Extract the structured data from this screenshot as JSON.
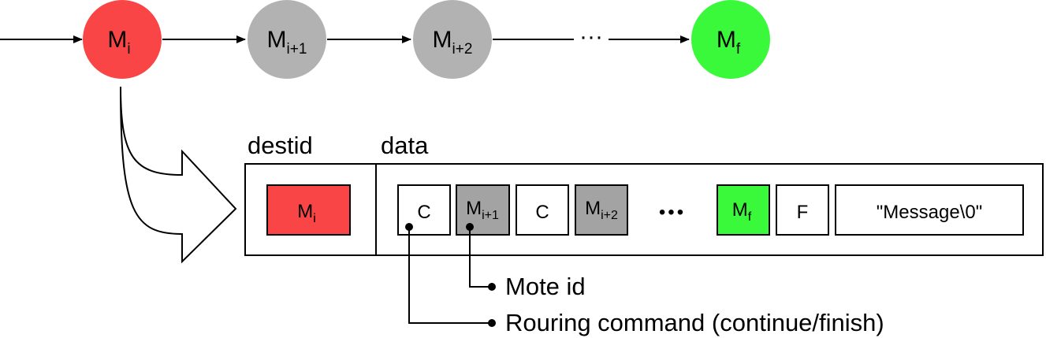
{
  "nodes": [
    {
      "main": "M",
      "sub": "i",
      "color": "#f94545"
    },
    {
      "main": "M",
      "sub": "i+1",
      "color": "#b2b2b2"
    },
    {
      "main": "M",
      "sub": "i+2",
      "color": "#b2b2b2"
    },
    {
      "main": "M",
      "sub": "f",
      "color": "#3af83a"
    }
  ],
  "ellipsis": "···",
  "fields": {
    "destid_label": "destid",
    "data_label": "data"
  },
  "packet": {
    "dest": {
      "main": "M",
      "sub": "i",
      "color": "#f94545"
    },
    "cells": [
      {
        "main": "C",
        "sub": "",
        "color": "#ffffff"
      },
      {
        "main": "M",
        "sub": "i+1",
        "color": "#a3a3a3"
      },
      {
        "main": "C",
        "sub": "",
        "color": "#ffffff"
      },
      {
        "main": "M",
        "sub": "i+2",
        "color": "#a3a3a3"
      },
      {
        "main": "M",
        "sub": "f",
        "color": "#3af83a"
      },
      {
        "main": "F",
        "sub": "",
        "color": "#ffffff"
      },
      {
        "main": "\"Message\\0\"",
        "sub": "",
        "color": "#ffffff"
      }
    ],
    "dots": "•••"
  },
  "annotations": {
    "mote_id": "Mote id",
    "routing_command": "Rouring command (continue/finish)"
  }
}
